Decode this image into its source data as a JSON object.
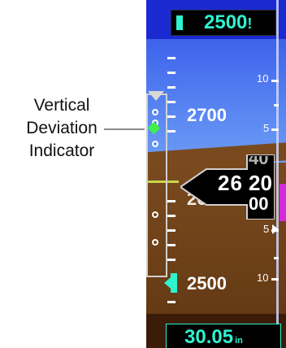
{
  "callout": {
    "lines": [
      "Vertical",
      "Deviation",
      "Indicator"
    ]
  },
  "altimeter": {
    "selected_altitude": "2500",
    "selected_altitude_suffix": "!",
    "current_altitude_hundreds": "26",
    "current_altitude_tens_above": "40",
    "current_altitude_tens": "20",
    "current_altitude_tens_below": "00",
    "tape_labels": [
      "2700",
      "2500"
    ],
    "partial_label": "2600",
    "barometric_setting": "30.05",
    "barometric_unit": "in",
    "vsi_labels": [
      "10",
      "5",
      "5",
      "10"
    ]
  },
  "colors": {
    "sky": "#5a87f2",
    "earth": "#6b3f17",
    "bug_cyan": "#2ef2d0",
    "vdi_green": "#41f048",
    "vs_magenta": "#d42ad8"
  }
}
